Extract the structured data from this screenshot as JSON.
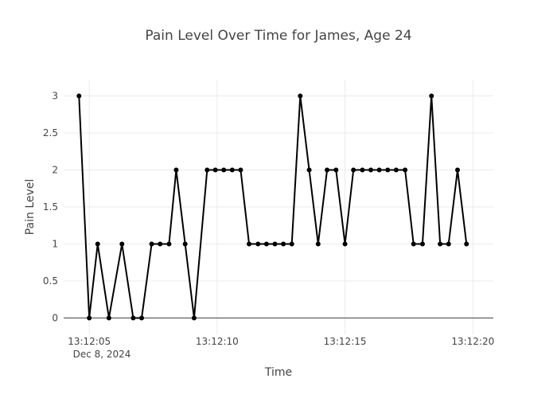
{
  "chart_data": {
    "type": "line",
    "title": "Pain Level Over Time for James, Age 24",
    "xlabel": "Time",
    "ylabel": "Pain Level",
    "x_date_label": "Dec 8, 2024",
    "x_start_time": "13:12:04.60",
    "x_tick_labels": [
      "13:12:05",
      "13:12:10",
      "13:12:15",
      "13:12:20"
    ],
    "x_tick_times": [
      "13:12:05",
      "13:12:10",
      "13:12:15",
      "13:12:20"
    ],
    "x_range": [
      "13:12:04.0",
      "13:12:20.8"
    ],
    "y_tick_labels": [
      "0",
      "0.5",
      "1",
      "1.5",
      "2",
      "2.5",
      "3"
    ],
    "y_ticks": [
      0,
      0.5,
      1,
      1.5,
      2,
      2.5,
      3
    ],
    "ylim": [
      -0.22,
      3.22
    ],
    "grid": true,
    "line_color": "#000000",
    "x": [
      "13:12:04.60",
      "13:12:05.00",
      "13:12:05.33",
      "13:12:05.77",
      "13:12:06.28",
      "13:12:06.72",
      "13:12:07.05",
      "13:12:07.44",
      "13:12:07.77",
      "13:12:08.12",
      "13:12:08.40",
      "13:12:08.75",
      "13:12:09.10",
      "13:12:09.61",
      "13:12:09.93",
      "13:12:10.26",
      "13:12:10.59",
      "13:12:10.92",
      "13:12:11.25",
      "13:12:11.60",
      "13:12:11.93",
      "13:12:12.26",
      "13:12:12.59",
      "13:12:12.92",
      "13:12:13.25",
      "13:12:13.60",
      "13:12:13.95",
      "13:12:14.30",
      "13:12:14.65",
      "13:12:15.00",
      "13:12:15.33",
      "13:12:15.68",
      "13:12:16.01",
      "13:12:16.34",
      "13:12:16.67",
      "13:12:17.00",
      "13:12:17.35",
      "13:12:17.68",
      "13:12:18.03",
      "13:12:18.38",
      "13:12:18.72",
      "13:12:19.05",
      "13:12:19.40",
      "13:12:19.75"
    ],
    "values": [
      3,
      0,
      1,
      0,
      1,
      0,
      0,
      1,
      1,
      1,
      2,
      1,
      0,
      2,
      2,
      2,
      2,
      2,
      1,
      1,
      1,
      1,
      1,
      1,
      3,
      2,
      1,
      2,
      2,
      1,
      2,
      2,
      2,
      2,
      2,
      2,
      2,
      1,
      1,
      3,
      1,
      1,
      2,
      1
    ]
  }
}
